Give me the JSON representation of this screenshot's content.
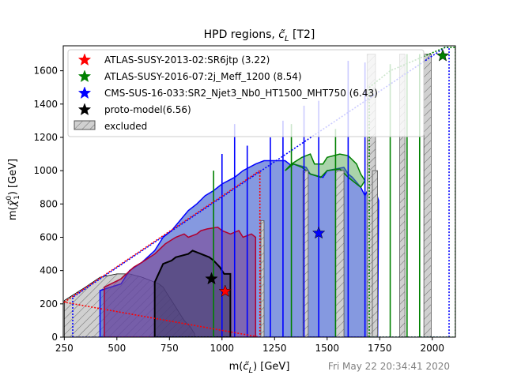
{
  "chart_data": {
    "type": "contour-region",
    "title": "HPD regions, c̃_L [T2]",
    "title_main": "HPD regions, ",
    "title_tex": "c̃",
    "title_sub": "L",
    "title_tail": " [T2]",
    "xlabel": "m(c̃_L) [GeV]",
    "xlabel_pre": "m(",
    "xlabel_sym": "c̃",
    "xlabel_sub": "L",
    "xlabel_post": ") [GeV]",
    "ylabel": "m(χ̃⁰₁) [GeV]",
    "ylabel_pre": "m(",
    "ylabel_sym": "χ̃",
    "ylabel_sup": "0",
    "ylabel_sub": "1",
    "ylabel_post": ") [GeV]",
    "xlim": [
      245,
      2110
    ],
    "ylim": [
      0,
      1750
    ],
    "xticks": [
      250,
      500,
      750,
      1000,
      1250,
      1500,
      1750,
      2000
    ],
    "yticks": [
      0,
      200,
      400,
      600,
      800,
      1000,
      1200,
      1400,
      1600
    ],
    "legend_position": "upper-left",
    "series": [
      {
        "name": "ATLAS-SUSY-2013-02:SR6jtp (3.22)",
        "color": "#ff0000",
        "best_point": {
          "x": 1015,
          "y": 275
        }
      },
      {
        "name": "ATLAS-SUSY-2016-07:2j_Meff_1200 (8.54)",
        "color": "#008000",
        "best_point": {
          "x": 2050,
          "y": 1690
        }
      },
      {
        "name": "CMS-SUS-16-033:SR2_Njet3_Nb0_HT1500_MHT750 (6.43)",
        "color": "#0000ff",
        "best_point": {
          "x": 1460,
          "y": 625
        }
      },
      {
        "name": "proto-model(6.56)",
        "color": "#000000",
        "best_point": {
          "x": 950,
          "y": 350
        }
      }
    ],
    "excluded_label": "excluded",
    "timestamp": "Fri May 22 20:34:41 2020",
    "regions": {
      "triangle": [
        [
          250,
          0
        ],
        [
          250,
          215
        ],
        [
          2050,
          1740
        ],
        [
          2110,
          1740
        ],
        [
          2110,
          0
        ]
      ],
      "blue_fill": [
        [
          420,
          0
        ],
        [
          420,
          280
        ],
        [
          520,
          320
        ],
        [
          560,
          400
        ],
        [
          620,
          450
        ],
        [
          680,
          520
        ],
        [
          720,
          600
        ],
        [
          760,
          640
        ],
        [
          800,
          700
        ],
        [
          840,
          760
        ],
        [
          880,
          800
        ],
        [
          920,
          850
        ],
        [
          960,
          880
        ],
        [
          1000,
          920
        ],
        [
          1060,
          960
        ],
        [
          1100,
          1000
        ],
        [
          1160,
          1040
        ],
        [
          1200,
          1060
        ],
        [
          1260,
          1060
        ],
        [
          1300,
          1060
        ],
        [
          1330,
          1030
        ],
        [
          1340,
          1040
        ],
        [
          1400,
          1020
        ],
        [
          1420,
          980
        ],
        [
          1480,
          960
        ],
        [
          1500,
          1000
        ],
        [
          1580,
          1020
        ],
        [
          1600,
          980
        ],
        [
          1620,
          960
        ],
        [
          1660,
          900
        ],
        [
          1680,
          850
        ],
        [
          1700,
          900
        ],
        [
          1730,
          880
        ],
        [
          1745,
          820
        ],
        [
          1740,
          0
        ]
      ],
      "purple_fill": [
        [
          440,
          0
        ],
        [
          440,
          300
        ],
        [
          520,
          350
        ],
        [
          580,
          420
        ],
        [
          620,
          450
        ],
        [
          680,
          500
        ],
        [
          730,
          560
        ],
        [
          780,
          600
        ],
        [
          820,
          620
        ],
        [
          840,
          600
        ],
        [
          880,
          620
        ],
        [
          900,
          640
        ],
        [
          930,
          650
        ],
        [
          980,
          660
        ],
        [
          1000,
          640
        ],
        [
          1040,
          620
        ],
        [
          1080,
          640
        ],
        [
          1100,
          600
        ],
        [
          1140,
          620
        ],
        [
          1160,
          600
        ],
        [
          1160,
          0
        ]
      ],
      "black_fill": [
        [
          680,
          0
        ],
        [
          680,
          330
        ],
        [
          720,
          440
        ],
        [
          760,
          460
        ],
        [
          780,
          480
        ],
        [
          840,
          500
        ],
        [
          860,
          520
        ],
        [
          900,
          500
        ],
        [
          940,
          480
        ],
        [
          960,
          460
        ],
        [
          990,
          420
        ],
        [
          1010,
          380
        ],
        [
          1040,
          380
        ],
        [
          1040,
          0
        ]
      ],
      "green_fill": [
        [
          1300,
          1000
        ],
        [
          1330,
          1040
        ],
        [
          1380,
          1080
        ],
        [
          1420,
          1100
        ],
        [
          1440,
          1040
        ],
        [
          1480,
          1040
        ],
        [
          1500,
          1080
        ],
        [
          1560,
          1100
        ],
        [
          1600,
          1090
        ],
        [
          1640,
          1040
        ],
        [
          1660,
          980
        ],
        [
          1680,
          940
        ],
        [
          1660,
          900
        ],
        [
          1600,
          960
        ],
        [
          1560,
          1010
        ],
        [
          1500,
          1000
        ],
        [
          1470,
          960
        ],
        [
          1420,
          980
        ],
        [
          1380,
          1020
        ],
        [
          1340,
          1040
        ],
        [
          1300,
          1000
        ]
      ],
      "excluded": [
        [
          250,
          0
        ],
        [
          250,
          220
        ],
        [
          350,
          300
        ],
        [
          420,
          360
        ],
        [
          500,
          380
        ],
        [
          560,
          380
        ],
        [
          620,
          360
        ],
        [
          660,
          340
        ],
        [
          700,
          320
        ],
        [
          720,
          300
        ],
        [
          740,
          260
        ],
        [
          760,
          220
        ],
        [
          780,
          180
        ],
        [
          800,
          140
        ],
        [
          820,
          100
        ],
        [
          850,
          60
        ],
        [
          870,
          20
        ],
        [
          870,
          0
        ]
      ],
      "red_dotted": [
        [
          250,
          210
        ],
        [
          1180,
          1000
        ],
        [
          1180,
          0
        ]
      ],
      "blue_dotted": [
        [
          290,
          0
        ],
        [
          290,
          240
        ],
        [
          2060,
          1740
        ],
        [
          2080,
          1740
        ],
        [
          2080,
          0
        ]
      ],
      "green_dotted": [
        [
          1700,
          0
        ],
        [
          1700,
          1500
        ],
        [
          1800,
          1600
        ],
        [
          2060,
          1740
        ],
        [
          2110,
          1740
        ],
        [
          2110,
          0
        ]
      ]
    },
    "excluded_bars": [
      [
        1385,
        1410,
        1000
      ],
      [
        1540,
        1580,
        1000
      ],
      [
        1690,
        1730,
        1700
      ],
      [
        1845,
        1870,
        1700
      ],
      [
        1960,
        1995,
        1700
      ],
      [
        1715,
        1740,
        1000
      ],
      [
        1185,
        1200,
        700
      ]
    ]
  }
}
